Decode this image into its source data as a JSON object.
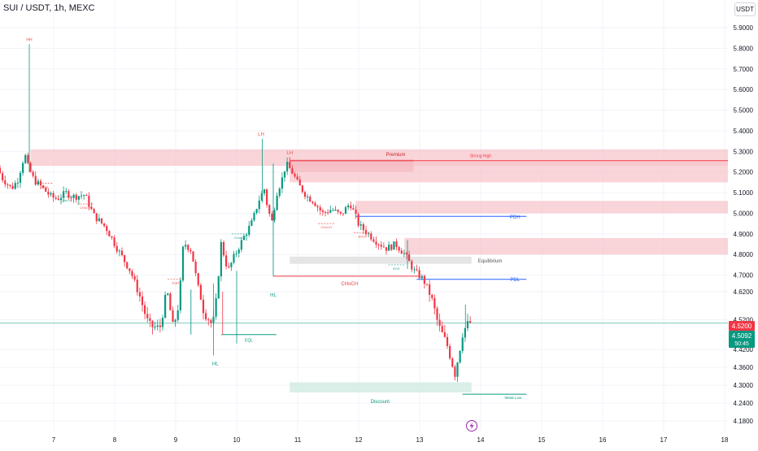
{
  "header": {
    "symbol": "SUI / USDT, 1h, MEXC",
    "currency": "USDT"
  },
  "colors": {
    "bull": "#089981",
    "bear": "#f23645",
    "premium_zone": "#f7c6cb",
    "premium_zone_dark": "#ef9aa3",
    "discount_zone": "#cfe9e1",
    "equilibrium_zone": "#dcdcdc",
    "level_blue": "#2962ff",
    "level_red": "#f23645",
    "level_green": "#089981",
    "structure_green": "#26a69a",
    "structure_red": "#ef5350"
  },
  "price_axis": {
    "labels": [
      "5.9000",
      "5.8000",
      "5.7000",
      "5.6000",
      "5.5000",
      "5.4000",
      "5.3000",
      "5.2000",
      "5.1000",
      "5.0000",
      "4.9000",
      "4.8000",
      "4.7000",
      "4.6200",
      "4.5200",
      "4.4200",
      "4.3600",
      "4.3000",
      "4.2400",
      "4.1800"
    ]
  },
  "time_axis": {
    "labels": [
      "7",
      "8",
      "9",
      "10",
      "11",
      "12",
      "13",
      "14",
      "15",
      "16",
      "17",
      "18"
    ]
  },
  "badges": {
    "price_high": "4.5200",
    "last_price": "4.5092",
    "countdown": "50:45"
  },
  "chart_data": {
    "type": "candlestick",
    "x_unit": "day of month (1h candles)",
    "ylim": [
      4.18,
      5.95
    ],
    "last_price": 4.5092,
    "swing_points": [
      {
        "label": "HH",
        "day": 6.6,
        "price": 5.82
      },
      {
        "label": "LH",
        "day": 10.4,
        "price": 5.36
      },
      {
        "label": "LH",
        "day": 10.87,
        "price": 5.27
      },
      {
        "label": "HL",
        "day": 9.65,
        "price": 4.41
      },
      {
        "label": "HL",
        "day": 10.6,
        "price": 4.66
      }
    ],
    "zones": [
      {
        "label": "Premium",
        "x0": 6.62,
        "x1": 18.1,
        "y0": 5.23,
        "y1": 5.31,
        "color": "premium"
      },
      {
        "label": "",
        "x0": 10.87,
        "x1": 12.9,
        "y0": 5.2,
        "y1": 5.26,
        "color": "premium_dark"
      },
      {
        "label": "",
        "x0": 10.87,
        "x1": 18.1,
        "y0": 5.15,
        "y1": 5.25,
        "color": "premium"
      },
      {
        "label": "",
        "x0": 11.95,
        "x1": 18.1,
        "y0": 5.0,
        "y1": 5.06,
        "color": "premium"
      },
      {
        "label": "",
        "x0": 12.75,
        "x1": 18.1,
        "y0": 4.8,
        "y1": 4.88,
        "color": "premium"
      },
      {
        "label": "Equilibrium",
        "x0": 10.87,
        "x1": 13.85,
        "y0": 4.755,
        "y1": 4.79,
        "color": "equilibrium"
      },
      {
        "label": "Discount",
        "x0": 10.87,
        "x1": 13.85,
        "y0": 4.276,
        "y1": 4.31,
        "color": "discount"
      }
    ],
    "levels": [
      {
        "label": "PDH",
        "x0": 11.95,
        "x1": 14.75,
        "y": 4.985,
        "color": "blue"
      },
      {
        "label": "PDL",
        "x0": 12.95,
        "x1": 14.75,
        "y": 4.68,
        "color": "blue"
      },
      {
        "label": "Strong High",
        "x0": 10.87,
        "x1": 18.1,
        "y": 5.255,
        "color": "red"
      },
      {
        "label": "Weak Low",
        "x0": 13.7,
        "x1": 14.75,
        "y": 4.27,
        "color": "green"
      },
      {
        "label": "CHoCH",
        "x0": 10.6,
        "x1": 13.0,
        "y": 4.695,
        "color": "red"
      },
      {
        "label": "EQL",
        "x0": 9.75,
        "x1": 10.65,
        "y": 4.47,
        "color": "green"
      }
    ],
    "structure_marks": [
      {
        "label": "BOS",
        "day": 6.85,
        "price": 5.145,
        "color": "red"
      },
      {
        "label": "CHoCH",
        "day": 7.2,
        "price": 5.08,
        "color": "green"
      },
      {
        "label": "CHoCH",
        "day": 7.52,
        "price": 5.045,
        "color": "red"
      },
      {
        "label": "CHoCH",
        "day": 10.05,
        "price": 4.9,
        "color": "green"
      },
      {
        "label": "CHoCH",
        "day": 11.47,
        "price": 4.95,
        "color": "red"
      },
      {
        "label": "BOS",
        "day": 12.05,
        "price": 4.905,
        "color": "red"
      },
      {
        "label": "BOS",
        "day": 12.62,
        "price": 4.75,
        "color": "green"
      },
      {
        "label": "EQH",
        "day": 9.0,
        "price": 4.68,
        "color": "red"
      }
    ]
  }
}
